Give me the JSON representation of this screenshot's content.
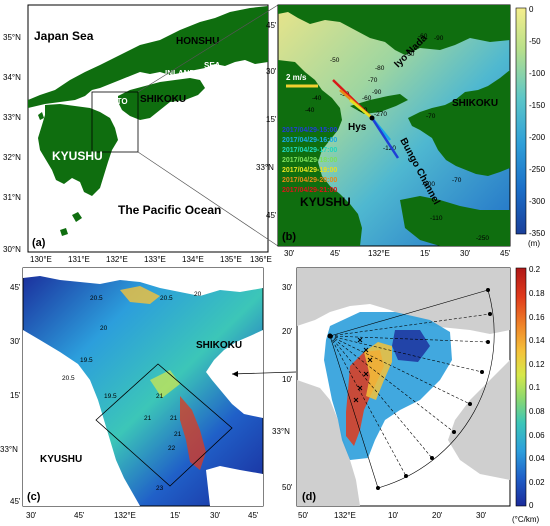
{
  "panels": {
    "a": {
      "letter": "(a)",
      "labels": {
        "japan_sea": "Japan Sea",
        "honshu": "HONSHU",
        "inland": "INLAND",
        "sea": "SEA",
        "seto": "SETO",
        "shikoku": "SHIKOKU",
        "kyushu": "KYUSHU",
        "pacific": "The Pacific Ocean"
      },
      "lon_ticks": [
        "130°E",
        "131°E",
        "132°E",
        "133°E",
        "134°E",
        "135°E",
        "136°E"
      ],
      "lat_ticks": [
        "35°N",
        "34°N",
        "33°N",
        "32°N",
        "31°N",
        "30°N"
      ]
    },
    "b": {
      "letter": "(b)",
      "labels": {
        "iyo_nada": "Iyo Nada",
        "bungo": "Bungo Channel",
        "shikoku": "SHIKOKU",
        "kyushu": "KYUSHU",
        "hys": "Hys",
        "scale": "2 m/s"
      },
      "times": [
        {
          "text": "2017/04/29-15:00",
          "color": "#1f3fd6"
        },
        {
          "text": "2017/04/29-16:00",
          "color": "#18a8e8"
        },
        {
          "text": "2017/04/29-17:00",
          "color": "#1fd6c0"
        },
        {
          "text": "2017/04/29-18:00",
          "color": "#7fe05a"
        },
        {
          "text": "2017/04/29-19:00",
          "color": "#e8e020"
        },
        {
          "text": "2017/04/29-20:00",
          "color": "#e88a18"
        },
        {
          "text": "2017/04/29-21:00",
          "color": "#d81818"
        }
      ],
      "contours": [
        "-50",
        "-40",
        "-50",
        "-60",
        "-60",
        "-70",
        "-80",
        "-40",
        "-90",
        "-60",
        "-50",
        "-70",
        "-90",
        "-270",
        "-120",
        "-70",
        "-100",
        "-110",
        "-250"
      ],
      "lon_ticks": [
        "30'",
        "45'",
        "132°E",
        "15'",
        "30'",
        "45'"
      ],
      "lat_ticks": [
        "45'",
        "30'",
        "15'",
        "33°N",
        "45'"
      ],
      "colorbar": {
        "ticks": [
          "0",
          "-50",
          "-100",
          "-150",
          "-200",
          "-250",
          "-300",
          "-350"
        ],
        "unit": "(m)",
        "colors": [
          "#f5ee8c",
          "#b9e08a",
          "#5cc6c8",
          "#2f9fd8",
          "#1b6fc8",
          "#1a3f9a"
        ]
      }
    },
    "c": {
      "letter": "(c)",
      "labels": {
        "shikoku": "SHIKOKU",
        "kyushu": "KYUSHU"
      },
      "contours": [
        "20.5",
        "20",
        "20",
        "20.5",
        "19.5",
        "20.5",
        "19.5",
        "21",
        "21",
        "21",
        "21",
        "22",
        "23"
      ],
      "lon_ticks": [
        "30'",
        "45'",
        "132°E",
        "15'",
        "30'",
        "45'"
      ],
      "lat_ticks": [
        "45'",
        "30'",
        "15'",
        "33°N",
        "45'"
      ]
    },
    "d": {
      "letter": "(d)",
      "lon_ticks": [
        "50'",
        "132°E",
        "10'",
        "20'",
        "30'"
      ],
      "lat_ticks": [
        "30'",
        "20'",
        "10'",
        "33°N",
        "50'"
      ],
      "colorbar": {
        "ticks": [
          "0.2",
          "0.18",
          "0.16",
          "0.14",
          "0.12",
          "0.1",
          "0.08",
          "0.06",
          "0.04",
          "0.02",
          "0"
        ],
        "unit": "(°C/km)",
        "colors": [
          "#b01818",
          "#e03a1c",
          "#f08a2a",
          "#f5c23a",
          "#d6e84a",
          "#8ad870",
          "#3cc6b8",
          "#2c9edc",
          "#2060c8",
          "#1a2a9a"
        ]
      }
    }
  }
}
